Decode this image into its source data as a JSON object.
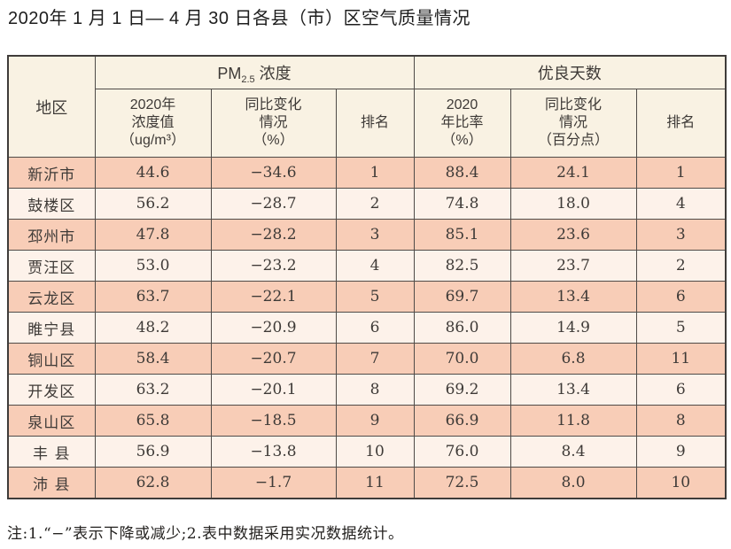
{
  "title": "2020年 1 月 1 日— 4 月 30 日各县（市）区空气质量情况",
  "table": {
    "region_header": "地区",
    "pm_group": {
      "prefix": "PM",
      "sub": "2.5",
      "suffix": " 浓度"
    },
    "good_days_group": "优良天数",
    "subheaders": {
      "pm_value": "2020年\n浓度值\n（ug/m³）",
      "pm_change": "同比变化\n情况\n（%）",
      "pm_rank": "排名",
      "good_rate": "2020\n年比率\n（%）",
      "good_change": "同比变化\n情况\n（百分点）",
      "good_rank": "排名"
    },
    "rows": [
      {
        "region": "新沂市",
        "pm_value": "44.6",
        "pm_change": "−34.6",
        "pm_rank": "1",
        "good_rate": "88.4",
        "good_change": "24.1",
        "good_rank": "1"
      },
      {
        "region": "鼓楼区",
        "pm_value": "56.2",
        "pm_change": "−28.7",
        "pm_rank": "2",
        "good_rate": "74.8",
        "good_change": "18.0",
        "good_rank": "4"
      },
      {
        "region": "邳州市",
        "pm_value": "47.8",
        "pm_change": "−28.2",
        "pm_rank": "3",
        "good_rate": "85.1",
        "good_change": "23.6",
        "good_rank": "3"
      },
      {
        "region": "贾汪区",
        "pm_value": "53.0",
        "pm_change": "−23.2",
        "pm_rank": "4",
        "good_rate": "82.5",
        "good_change": "23.7",
        "good_rank": "2"
      },
      {
        "region": "云龙区",
        "pm_value": "63.7",
        "pm_change": "−22.1",
        "pm_rank": "5",
        "good_rate": "69.7",
        "good_change": "13.4",
        "good_rank": "6"
      },
      {
        "region": "睢宁县",
        "pm_value": "48.2",
        "pm_change": "−20.9",
        "pm_rank": "6",
        "good_rate": "86.0",
        "good_change": "14.9",
        "good_rank": "5"
      },
      {
        "region": "铜山区",
        "pm_value": "58.4",
        "pm_change": "−20.7",
        "pm_rank": "7",
        "good_rate": "70.0",
        "good_change": "6.8",
        "good_rank": "11"
      },
      {
        "region": "开发区",
        "pm_value": "63.2",
        "pm_change": "−20.1",
        "pm_rank": "8",
        "good_rate": "69.2",
        "good_change": "13.4",
        "good_rank": "6"
      },
      {
        "region": "泉山区",
        "pm_value": "65.8",
        "pm_change": "−18.5",
        "pm_rank": "9",
        "good_rate": "66.9",
        "good_change": "11.8",
        "good_rank": "8"
      },
      {
        "region": "丰 县",
        "pm_value": "56.9",
        "pm_change": "−13.8",
        "pm_rank": "10",
        "good_rate": "76.0",
        "good_change": "8.4",
        "good_rank": "9"
      },
      {
        "region": "沛 县",
        "pm_value": "62.8",
        "pm_change": "−1.7",
        "pm_rank": "11",
        "good_rate": "72.5",
        "good_change": "8.0",
        "good_rank": "10"
      }
    ]
  },
  "note": "注:1.“−”表示下降或减少;2.表中数据采用实况数据统计。",
  "colors": {
    "header_bg": "#f9f2e3",
    "row_odd_bg": "#f8cdb7",
    "row_even_bg": "#fdf2ea",
    "border": "#4f4b48",
    "text": "#3e3a37"
  }
}
